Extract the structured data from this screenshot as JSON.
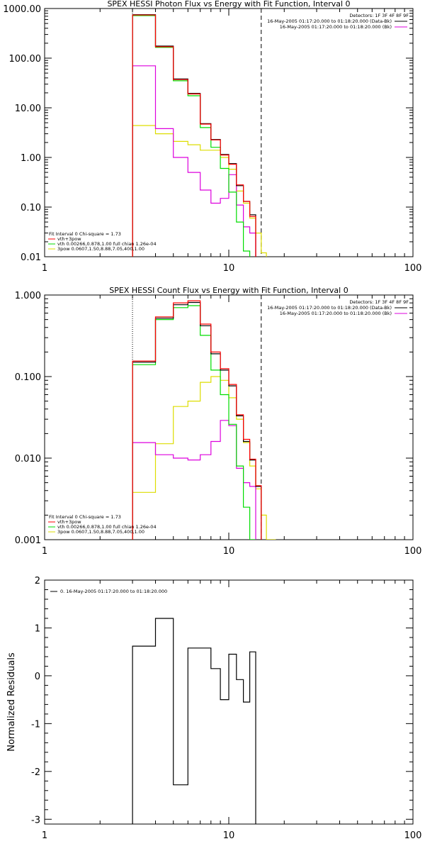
{
  "chart_data": [
    {
      "type": "line",
      "title": "SPEX HESSI Photon Flux vs Energy with Fit Function, Interval 0",
      "xlabel": "",
      "ylabel": "",
      "x_scale": "log",
      "y_scale": "log",
      "xlim": [
        1,
        100
      ],
      "ylim": [
        0.01,
        1000
      ],
      "x_ticks": [
        "1",
        "10",
        "100"
      ],
      "y_ticks": [
        "0.01",
        "0.10",
        "1.00",
        "10.00",
        "100.00",
        "1000.00"
      ],
      "legend_info": {
        "detectors": "Detectors: 1F 3F 4F 8F 9F",
        "line1": "16-May-2005 01:17:20.000 to 01:18:20.000 (Data-Bk)",
        "line2": "16-May-2005 01:17:20.000 to 01:18:20.000 (Bk)"
      },
      "fit_info": [
        "Fit Interval 0   Chi-square = 1.73",
        "vth+3pow",
        "vth 0.00266,0.878,1.00   full chian 1.26e-04",
        "3pow 0.0607,1.50,8.88,7.05,400,1.00"
      ],
      "dotted_x": 3.0,
      "dashed_x": 15.0,
      "edges": [
        3.0,
        4.0,
        5.0,
        6.0,
        7.0,
        8.0,
        9.0,
        10.0,
        11.0,
        12.0,
        13.0,
        14.0,
        15.0,
        16.0,
        18.0
      ],
      "series": [
        {
          "color": "#000000",
          "values": [
            750,
            175,
            38,
            19.5,
            4.8,
            2.3,
            1.15,
            0.75,
            0.27,
            0.13,
            0.07,
            null,
            null,
            null
          ]
        },
        {
          "color": "#ff0000",
          "values": [
            740,
            170,
            37,
            19,
            4.7,
            2.25,
            1.12,
            0.73,
            0.28,
            0.13,
            0.065,
            null,
            null,
            null
          ]
        },
        {
          "color": "#00dd00",
          "values": [
            720,
            165,
            35,
            17.5,
            4.0,
            1.6,
            0.6,
            0.2,
            0.05,
            0.013,
            null,
            null,
            null,
            null
          ]
        },
        {
          "color": "#dd00dd",
          "values": [
            70,
            3.8,
            1.0,
            0.5,
            0.22,
            0.12,
            0.15,
            0.45,
            0.11,
            0.04,
            0.03,
            null,
            null,
            null
          ]
        },
        {
          "color": "#dddd00",
          "values": [
            4.4,
            3.0,
            2.1,
            1.8,
            1.4,
            1.4,
            1.0,
            0.58,
            0.21,
            0.12,
            0.06,
            0.03,
            0.012,
            null
          ]
        }
      ]
    },
    {
      "type": "line",
      "title": "SPEX HESSI Count Flux vs Energy with Fit Function, Interval 0",
      "xlabel": "",
      "ylabel": "",
      "x_scale": "log",
      "y_scale": "log",
      "xlim": [
        1,
        100
      ],
      "ylim": [
        0.001,
        1
      ],
      "x_ticks": [
        "1",
        "10",
        "100"
      ],
      "y_ticks": [
        "0.001",
        "0.010",
        "0.100",
        "1.000"
      ],
      "legend_info": {
        "detectors": "Detectors: 1F 3F 4F 8F 9F",
        "line1": "16-May-2005 01:17:20.000 to 01:18:20.000 (Data-Bk)",
        "line2": "16-May-2005 01:17:20.000 to 01:18:20.000 (Bk)"
      },
      "fit_info": [
        "Fit Interval 0   Chi-square = 1.73",
        "vth+3pow",
        "vth 0.00266,0.878,1.00   full chian 1.26e-04",
        "3pow 0.0607,1.50,8.88,7.05,400,1.00"
      ],
      "dotted_x": 3.0,
      "dashed_x": 15.0,
      "edges": [
        3.0,
        4.0,
        5.0,
        6.0,
        7.0,
        8.0,
        9.0,
        10.0,
        11.0,
        12.0,
        13.0,
        14.0,
        15.0,
        16.0,
        18.0,
        20.0
      ],
      "series": [
        {
          "color": "#000000",
          "values": [
            0.15,
            0.52,
            0.76,
            0.81,
            0.42,
            0.19,
            0.12,
            0.077,
            0.033,
            0.016,
            0.0095,
            0.0045,
            null,
            null,
            null
          ]
        },
        {
          "color": "#ff0000",
          "values": [
            0.155,
            0.54,
            0.8,
            0.85,
            0.44,
            0.2,
            0.125,
            0.08,
            0.034,
            0.017,
            0.0097,
            0.0046,
            null,
            null,
            null
          ]
        },
        {
          "color": "#00dd00",
          "values": [
            0.14,
            0.5,
            0.7,
            0.74,
            0.32,
            0.12,
            0.06,
            0.026,
            0.008,
            0.0025,
            0.001,
            null,
            null,
            null,
            null
          ]
        },
        {
          "color": "#dd00dd",
          "values": [
            0.0155,
            0.011,
            0.01,
            0.0095,
            0.011,
            0.016,
            0.029,
            0.025,
            0.0075,
            0.005,
            0.0045,
            null,
            null,
            null,
            null
          ]
        },
        {
          "color": "#dddd00",
          "values": [
            0.0038,
            0.015,
            0.043,
            0.05,
            0.085,
            0.1,
            0.09,
            0.055,
            0.03,
            0.0155,
            0.008,
            0.0042,
            0.002,
            0.001,
            null
          ]
        }
      ]
    },
    {
      "type": "line",
      "title": "",
      "xlabel": "",
      "ylabel": "Normalized Residuals",
      "x_scale": "log",
      "y_scale": "linear",
      "xlim": [
        1,
        100
      ],
      "ylim": [
        -3.1,
        2
      ],
      "x_ticks": [
        "1",
        "10",
        "100"
      ],
      "y_ticks": [
        "-3",
        "-2",
        "-1",
        "0",
        "1",
        "2"
      ],
      "legend": "0. 16-May-2005 01:17:20.000 to 01:18:20.000",
      "edges": [
        3.0,
        4.0,
        5.0,
        6.0,
        8.0,
        9.0,
        10.0,
        11.0,
        12.0,
        13.0,
        14.0,
        15.0
      ],
      "series": [
        {
          "color": "#000000",
          "values": [
            0.62,
            1.2,
            -2.28,
            0.58,
            0.15,
            -0.5,
            0.45,
            -0.08,
            -0.55,
            0.5,
            null
          ]
        }
      ]
    }
  ]
}
